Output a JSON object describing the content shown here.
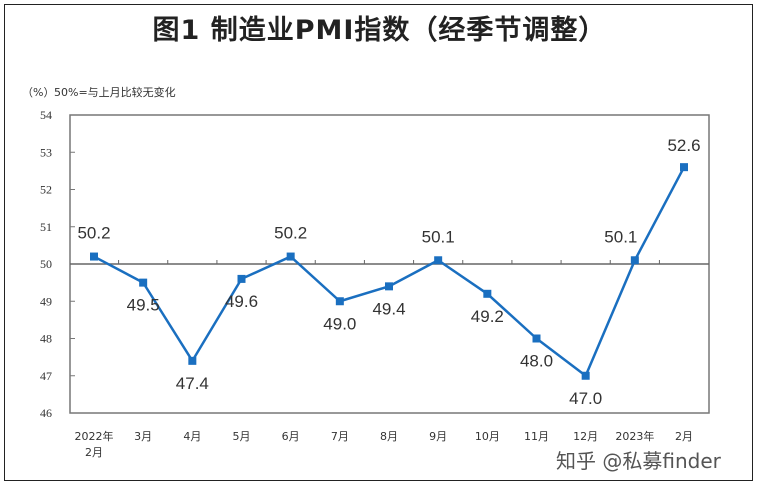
{
  "chart_data": {
    "type": "line",
    "title": "图1 制造业PMI指数（经季节调整）",
    "ylabel": "(%)",
    "annotation": "50%=与上月比较无变化",
    "xlabel": "",
    "categories": [
      "2022年2月",
      "3月",
      "4月",
      "5月",
      "6月",
      "7月",
      "8月",
      "9月",
      "10月",
      "11月",
      "12月",
      "2023年",
      "2月"
    ],
    "category_lines": [
      [
        "2022年",
        "2月"
      ],
      [
        "3月"
      ],
      [
        "4月"
      ],
      [
        "5月"
      ],
      [
        "6月"
      ],
      [
        "7月"
      ],
      [
        "8月"
      ],
      [
        "9月"
      ],
      [
        "10月"
      ],
      [
        "11月"
      ],
      [
        "12月"
      ],
      [
        "2023年"
      ],
      [
        "2月"
      ]
    ],
    "series": [
      {
        "name": "制造业PMI",
        "color": "#1a6fc0",
        "values": [
          50.2,
          49.5,
          47.4,
          49.6,
          50.2,
          49.0,
          49.4,
          50.1,
          49.2,
          48.0,
          47.0,
          50.1,
          52.6
        ],
        "labels": [
          "50.2",
          "49.5",
          "47.4",
          "49.6",
          "50.2",
          "49.0",
          "49.4",
          "50.1",
          "49.2",
          "48.0",
          "47.0",
          "50.1",
          "52.6"
        ],
        "label_pos": [
          "above",
          "below",
          "below",
          "below",
          "above",
          "below",
          "below",
          "above",
          "below",
          "below",
          "below",
          "above",
          "above"
        ]
      }
    ],
    "ylim": [
      46,
      54
    ],
    "yticks": [
      46,
      47,
      48,
      49,
      50,
      51,
      52,
      53,
      54
    ],
    "reference_line": 50,
    "grid": false,
    "legend": "none"
  },
  "header": {
    "title": "图1 制造业PMI指数（经季节调整）",
    "unit": "（%）",
    "note": "50%=与上月比较无变化"
  },
  "watermark": "知乎 @私募finder"
}
